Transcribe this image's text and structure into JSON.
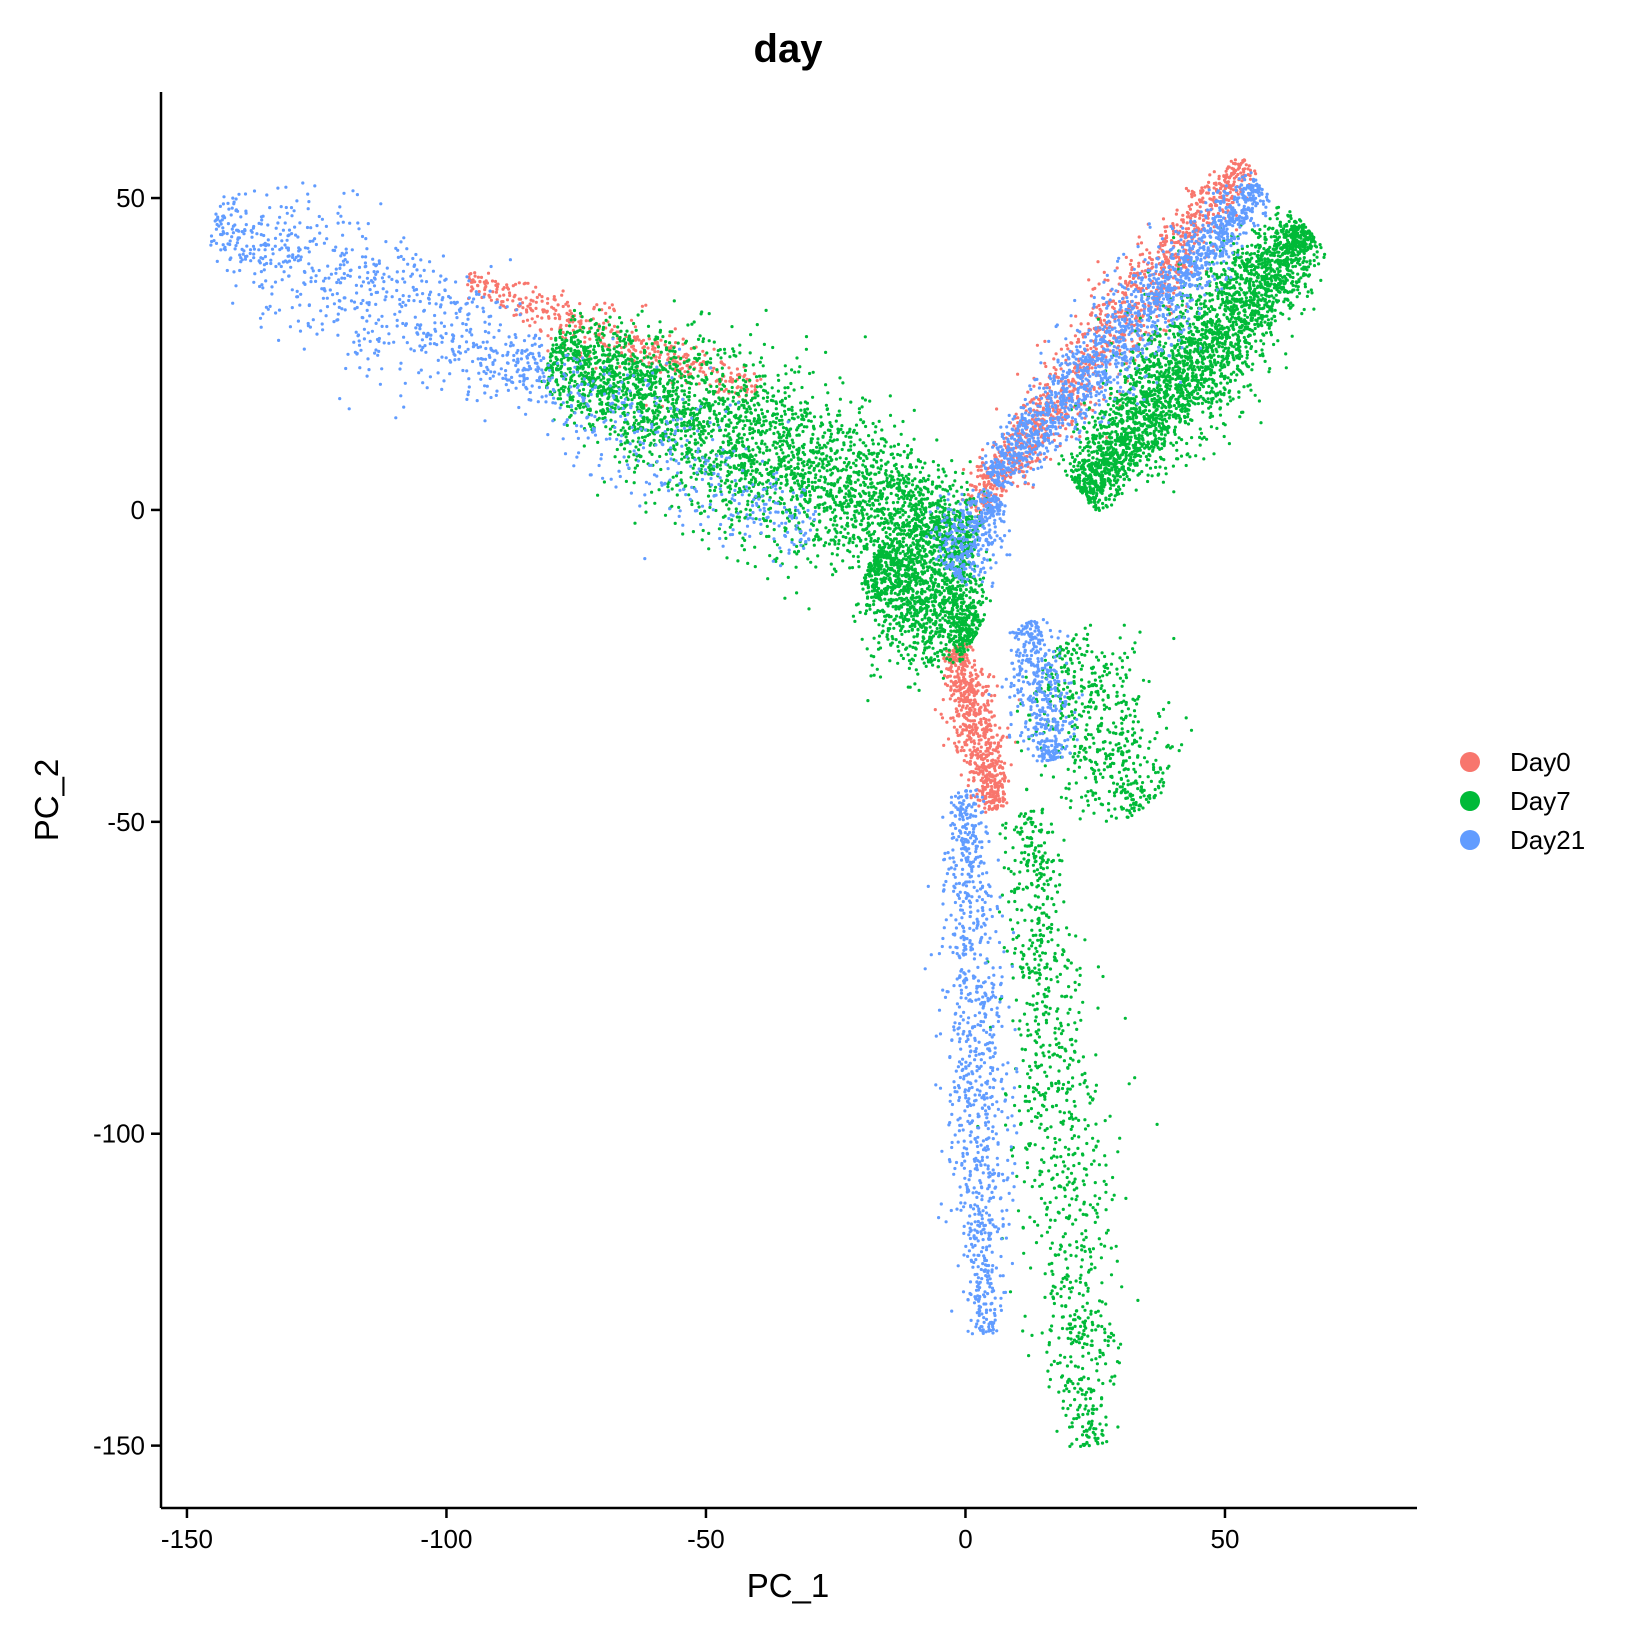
{
  "chart_data": {
    "type": "scatter",
    "title": "day",
    "xlabel": "PC_1",
    "ylabel": "PC_2",
    "xlim": [
      -155,
      87
    ],
    "ylim": [
      -160,
      67
    ],
    "xticks": [
      -150,
      -100,
      -50,
      0,
      50
    ],
    "xtick_labels": [
      "-150",
      "-100",
      "-50",
      "0",
      "50"
    ],
    "yticks": [
      -150,
      -100,
      -50,
      0,
      50
    ],
    "ytick_labels": [
      "-150",
      "-100",
      "-50",
      "0",
      "50"
    ],
    "grid": false,
    "legend_position": "right",
    "series": [
      {
        "name": "Day0",
        "color": "#F8766D",
        "clusters": [
          {
            "from": [
              -96,
              37
            ],
            "to": [
              -40,
              19
            ],
            "n": 450,
            "spread": 1.6
          },
          {
            "from": [
              1,
              0
            ],
            "to": [
              54,
              56
            ],
            "n": 1300,
            "spread": 2.2
          },
          {
            "from": [
              -2,
              -22
            ],
            "to": [
              6,
              -48
            ],
            "n": 700,
            "spread": 1.8
          }
        ]
      },
      {
        "name": "Day7",
        "color": "#00BA38",
        "clusters": [
          {
            "from": [
              -80,
              25
            ],
            "to": [
              2,
              -6
            ],
            "n": 3400,
            "spread": 5
          },
          {
            "from": [
              -18,
              -8
            ],
            "to": [
              2,
              -20
            ],
            "n": 1300,
            "spread": 4
          },
          {
            "from": [
              22,
              3
            ],
            "to": [
              66,
              45
            ],
            "n": 3000,
            "spread": 3.5
          },
          {
            "from": [
              18,
              -22
            ],
            "to": [
              34,
              -48
            ],
            "n": 550,
            "spread": 5
          },
          {
            "from": [
              12,
              -48
            ],
            "to": [
              24,
              -150
            ],
            "n": 1000,
            "spread": 3.5
          }
        ]
      },
      {
        "name": "Day21",
        "color": "#619CFF",
        "clusters": [
          {
            "from": [
              -145,
              46
            ],
            "to": [
              -82,
              22
            ],
            "n": 800,
            "spread": 4.5
          },
          {
            "from": [
              -82,
              22
            ],
            "to": [
              -30,
              -5
            ],
            "n": 400,
            "spread": 4
          },
          {
            "from": [
              5,
              5
            ],
            "to": [
              57,
              52
            ],
            "n": 1700,
            "spread": 2.5
          },
          {
            "from": [
              -3,
              -10
            ],
            "to": [
              6,
              2
            ],
            "n": 400,
            "spread": 2.5
          },
          {
            "from": [
              12,
              -18
            ],
            "to": [
              17,
              -40
            ],
            "n": 450,
            "spread": 2.5
          },
          {
            "from": [
              0,
              -45
            ],
            "to": [
              4,
              -132
            ],
            "n": 1000,
            "spread": 2.5
          }
        ]
      }
    ]
  }
}
